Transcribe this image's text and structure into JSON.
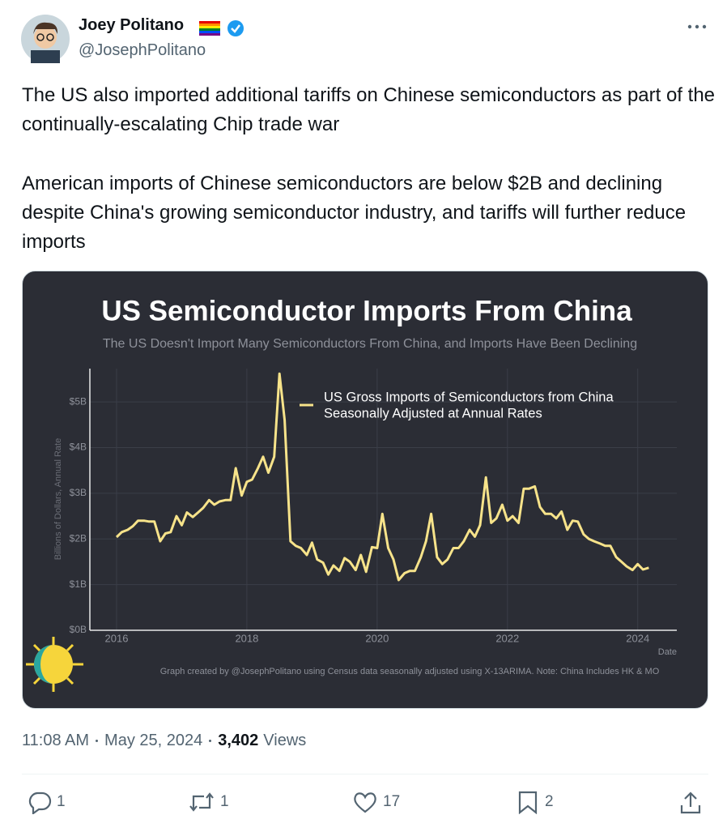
{
  "tweet": {
    "name": "Joey Politano",
    "handle": "@JosephPolitano",
    "paragraphs": [
      "The US also imported additional tariffs on Chinese semiconductors as part of the continually-escalating Chip trade war",
      "American imports of Chinese semiconductors are below $2B and declining despite China's growing semiconductor industry, and tariffs will further reduce imports"
    ],
    "time": "11:08 AM",
    "date": "May 25, 2024",
    "views": "3,402",
    "views_label": "Views",
    "replies": 1,
    "reposts": 1,
    "likes": 17,
    "bookmarks": 2
  },
  "chart_data": {
    "type": "line",
    "title": "US Semiconductor Imports From China",
    "subtitle": "The US Doesn't Import Many Semiconductors From China, and Imports Have Been Declining",
    "ylabel": "Billions of Dollars, Annual Rate",
    "xlabel": "Date",
    "caption": "Graph created by @JosephPolitano using Census data seasonally adjusted using X-13ARIMA. Note: China Includes HK & MO",
    "legend_note": "Seasonally Adjusted at Annual Rates",
    "x": [
      2016.0,
      2016.08,
      2016.17,
      2016.25,
      2016.33,
      2016.42,
      2016.5,
      2016.58,
      2016.67,
      2016.75,
      2016.83,
      2016.92,
      2017.0,
      2017.08,
      2017.17,
      2017.25,
      2017.33,
      2017.42,
      2017.5,
      2017.58,
      2017.67,
      2017.75,
      2017.83,
      2017.92,
      2018.0,
      2018.08,
      2018.17,
      2018.25,
      2018.33,
      2018.42,
      2018.5,
      2018.58,
      2018.67,
      2018.75,
      2018.83,
      2018.92,
      2019.0,
      2019.08,
      2019.17,
      2019.25,
      2019.33,
      2019.42,
      2019.5,
      2019.58,
      2019.67,
      2019.75,
      2019.83,
      2019.92,
      2020.0,
      2020.08,
      2020.17,
      2020.25,
      2020.33,
      2020.42,
      2020.5,
      2020.58,
      2020.67,
      2020.75,
      2020.83,
      2020.92,
      2021.0,
      2021.08,
      2021.17,
      2021.25,
      2021.33,
      2021.42,
      2021.5,
      2021.58,
      2021.67,
      2021.75,
      2021.83,
      2021.92,
      2022.0,
      2022.08,
      2022.17,
      2022.25,
      2022.33,
      2022.42,
      2022.5,
      2022.58,
      2022.67,
      2022.75,
      2022.83,
      2022.92,
      2023.0,
      2023.08,
      2023.17,
      2023.25,
      2023.33,
      2023.42,
      2023.5,
      2023.58,
      2023.67,
      2023.75,
      2023.83,
      2023.92,
      2024.0,
      2024.08,
      2024.17
    ],
    "series": [
      {
        "name": "US Gross Imports of Semiconductors from China",
        "color": "#f7e38a",
        "values": [
          2.04,
          2.15,
          2.2,
          2.28,
          2.4,
          2.4,
          2.38,
          2.38,
          1.95,
          2.12,
          2.15,
          2.5,
          2.3,
          2.58,
          2.48,
          2.58,
          2.68,
          2.85,
          2.75,
          2.82,
          2.85,
          2.85,
          3.55,
          2.95,
          3.25,
          3.3,
          3.55,
          3.8,
          3.45,
          3.8,
          5.62,
          4.6,
          1.95,
          1.85,
          1.8,
          1.65,
          1.92,
          1.55,
          1.48,
          1.22,
          1.42,
          1.3,
          1.58,
          1.5,
          1.32,
          1.65,
          1.28,
          1.82,
          1.8,
          2.55,
          1.8,
          1.55,
          1.1,
          1.25,
          1.3,
          1.3,
          1.6,
          1.95,
          2.55,
          1.6,
          1.45,
          1.55,
          1.8,
          1.8,
          1.95,
          2.2,
          2.05,
          2.3,
          3.35,
          2.35,
          2.45,
          2.75,
          2.4,
          2.5,
          2.35,
          3.1,
          3.1,
          3.15,
          2.7,
          2.55,
          2.55,
          2.45,
          2.6,
          2.2,
          2.4,
          2.38,
          2.1,
          2.0,
          1.95,
          1.9,
          1.85,
          1.85,
          1.6,
          1.5,
          1.4,
          1.32,
          1.45,
          1.33,
          1.37
        ]
      }
    ],
    "xlim": [
      2015.59,
      2024.6
    ],
    "xticks": [
      2016,
      2018,
      2020,
      2022,
      2024
    ],
    "ylim": [
      0,
      5.73
    ],
    "yticks": [
      {
        "value": 0,
        "label": "$0B"
      },
      {
        "value": 1,
        "label": "$1B"
      },
      {
        "value": 2,
        "label": "$2B"
      },
      {
        "value": 3,
        "label": "$3B"
      },
      {
        "value": 4,
        "label": "$4B"
      },
      {
        "value": 5,
        "label": "$5B"
      }
    ],
    "grid": true
  }
}
